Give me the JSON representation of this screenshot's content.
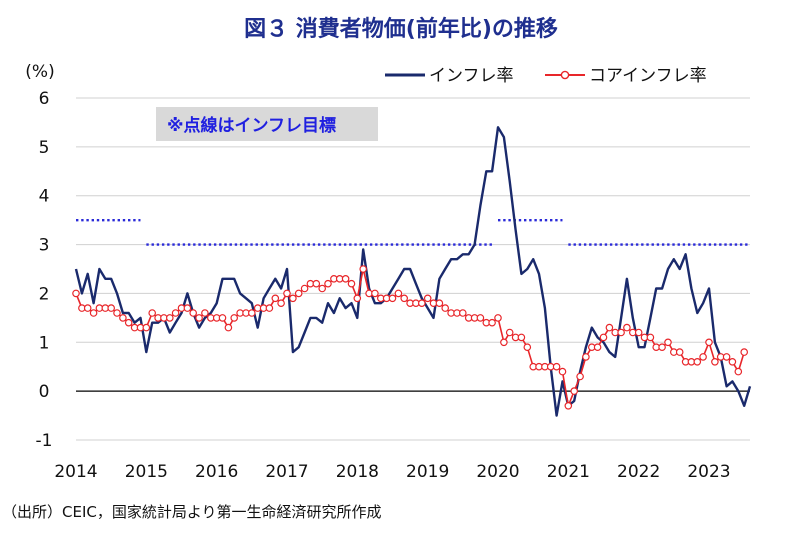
{
  "chart_data": {
    "type": "line",
    "title": "図３ 消費者物価(前年比)の推移",
    "ylabel": "(%)",
    "ylim": [
      -1,
      6
    ],
    "yticks": [
      -1,
      0,
      1,
      2,
      3,
      4,
      5,
      6
    ],
    "xlim": [
      2014,
      2023.583
    ],
    "xticks": [
      "2014",
      "2015",
      "2016",
      "2017",
      "2018",
      "2019",
      "2020",
      "2021",
      "2022",
      "2023"
    ],
    "grid": "horizontal",
    "legend_position": "top-right",
    "note": "※点線はインフレ目標",
    "source": "（出所）CEIC，国家統計局より第一生命経済研究所作成",
    "colors": {
      "inflation": "#1a2a6c",
      "core": "#e8262a",
      "target": "#2a2ad8"
    },
    "series": [
      {
        "name": "インフレ率",
        "start": "2014-01",
        "values": [
          2.5,
          2.0,
          2.4,
          1.8,
          2.5,
          2.3,
          2.3,
          2.0,
          1.6,
          1.6,
          1.4,
          1.5,
          0.8,
          1.4,
          1.4,
          1.5,
          1.2,
          1.4,
          1.6,
          2.0,
          1.6,
          1.3,
          1.5,
          1.6,
          1.8,
          2.3,
          2.3,
          2.3,
          2.0,
          1.9,
          1.8,
          1.3,
          1.9,
          2.1,
          2.3,
          2.1,
          2.5,
          0.8,
          0.9,
          1.2,
          1.5,
          1.5,
          1.4,
          1.8,
          1.6,
          1.9,
          1.7,
          1.8,
          1.5,
          2.9,
          2.1,
          1.8,
          1.8,
          1.9,
          2.1,
          2.3,
          2.5,
          2.5,
          2.2,
          1.9,
          1.7,
          1.5,
          2.3,
          2.5,
          2.7,
          2.7,
          2.8,
          2.8,
          3.0,
          3.8,
          4.5,
          4.5,
          5.4,
          5.2,
          4.3,
          3.3,
          2.4,
          2.5,
          2.7,
          2.4,
          1.7,
          0.5,
          -0.5,
          0.2,
          -0.3,
          -0.2,
          0.4,
          0.9,
          1.3,
          1.1,
          1.0,
          0.8,
          0.7,
          1.5,
          2.3,
          1.5,
          0.9,
          0.9,
          1.5,
          2.1,
          2.1,
          2.5,
          2.7,
          2.5,
          2.8,
          2.1,
          1.6,
          1.8,
          2.1,
          1.0,
          0.7,
          0.1,
          0.2,
          0.0,
          -0.3,
          0.1
        ]
      },
      {
        "name": "コアインフレ率",
        "start": "2014-01",
        "values": [
          2.0,
          1.7,
          1.7,
          1.6,
          1.7,
          1.7,
          1.7,
          1.6,
          1.5,
          1.4,
          1.3,
          1.3,
          1.3,
          1.6,
          1.5,
          1.5,
          1.5,
          1.6,
          1.7,
          1.7,
          1.6,
          1.5,
          1.6,
          1.5,
          1.5,
          1.5,
          1.3,
          1.5,
          1.6,
          1.6,
          1.6,
          1.7,
          1.7,
          1.7,
          1.9,
          1.8,
          2.0,
          1.9,
          2.0,
          2.1,
          2.2,
          2.2,
          2.1,
          2.2,
          2.3,
          2.3,
          2.3,
          2.2,
          1.9,
          2.5,
          2.0,
          2.0,
          1.9,
          1.9,
          1.9,
          2.0,
          1.9,
          1.8,
          1.8,
          1.8,
          1.9,
          1.8,
          1.8,
          1.7,
          1.6,
          1.6,
          1.6,
          1.5,
          1.5,
          1.5,
          1.4,
          1.4,
          1.5,
          1.0,
          1.2,
          1.1,
          1.1,
          0.9,
          0.5,
          0.5,
          0.5,
          0.5,
          0.5,
          0.4,
          -0.3,
          0.0,
          0.3,
          0.7,
          0.9,
          0.9,
          1.1,
          1.3,
          1.2,
          1.2,
          1.3,
          1.2,
          1.2,
          1.1,
          1.1,
          0.9,
          0.9,
          1.0,
          0.8,
          0.8,
          0.6,
          0.6,
          0.6,
          0.7,
          1.0,
          0.6,
          0.7,
          0.7,
          0.6,
          0.4,
          0.8
        ]
      }
    ],
    "target_lines": [
      {
        "from": "2014-01",
        "to": "2014-12",
        "value": 3.5
      },
      {
        "from": "2015-01",
        "to": "2019-12",
        "value": 3.0
      },
      {
        "from": "2020-01",
        "to": "2020-12",
        "value": 3.5
      },
      {
        "from": "2021-01",
        "to": "2023-08",
        "value": 3.0
      }
    ]
  }
}
